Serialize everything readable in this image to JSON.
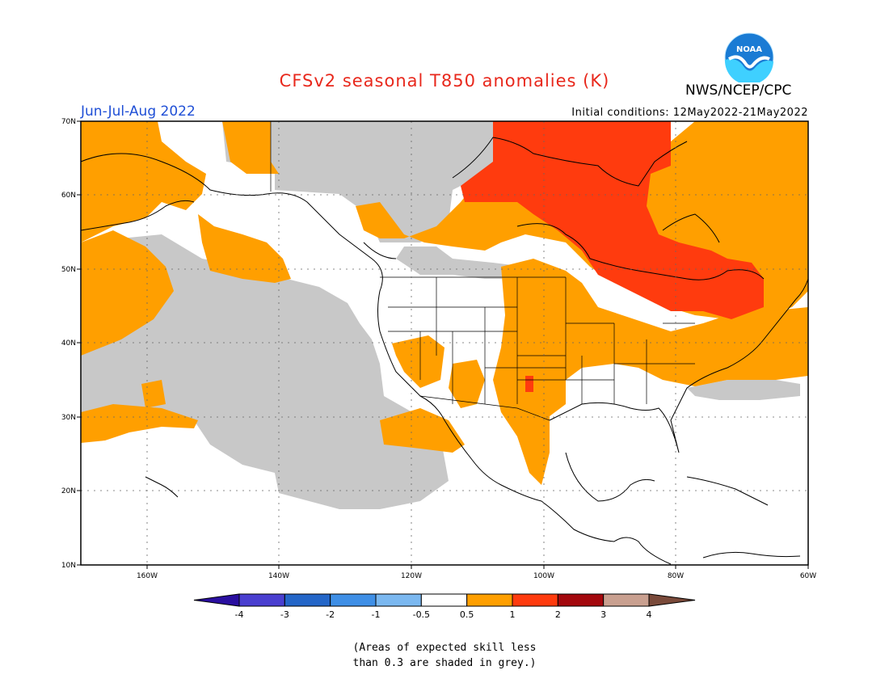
{
  "header": {
    "title": "CFSv2 seasonal T850 anomalies (K)",
    "agency": "NWS/NCEP/CPC",
    "logo_text": "NOAA",
    "season": "Jun-Jul-Aug 2022",
    "initial_conditions": "Initial conditions: 12May2022-21May2022"
  },
  "map": {
    "lat_labels": [
      "70N",
      "60N",
      "50N",
      "40N",
      "30N",
      "20N",
      "10N"
    ],
    "lon_labels": [
      "160W",
      "140W",
      "120W",
      "100W",
      "80W",
      "60W"
    ],
    "lon_range": [
      -171,
      -61
    ],
    "lat_range": [
      10,
      70
    ]
  },
  "colorbar": {
    "labels": [
      "-4",
      "-3",
      "-2",
      "-1",
      "-0.5",
      "0.5",
      "1",
      "2",
      "3",
      "4"
    ],
    "colors": [
      "#2a0fa0",
      "#4a3fd0",
      "#2466c8",
      "#3f8fe6",
      "#7bb8f0",
      "#ffffff",
      "#ff9f00",
      "#ff3b0e",
      "#a3080d",
      "#c9a090",
      "#7a4a3a"
    ]
  },
  "footnote": {
    "line1": "(Areas of expected skill less",
    "line2": "than 0.3 are shaded in grey.)"
  },
  "colors": {
    "warm": "#ff9f00",
    "hot": "#ff3b0e",
    "grey": "#c8c8c8",
    "title": "#e8281c",
    "season": "#1f4fd6"
  }
}
